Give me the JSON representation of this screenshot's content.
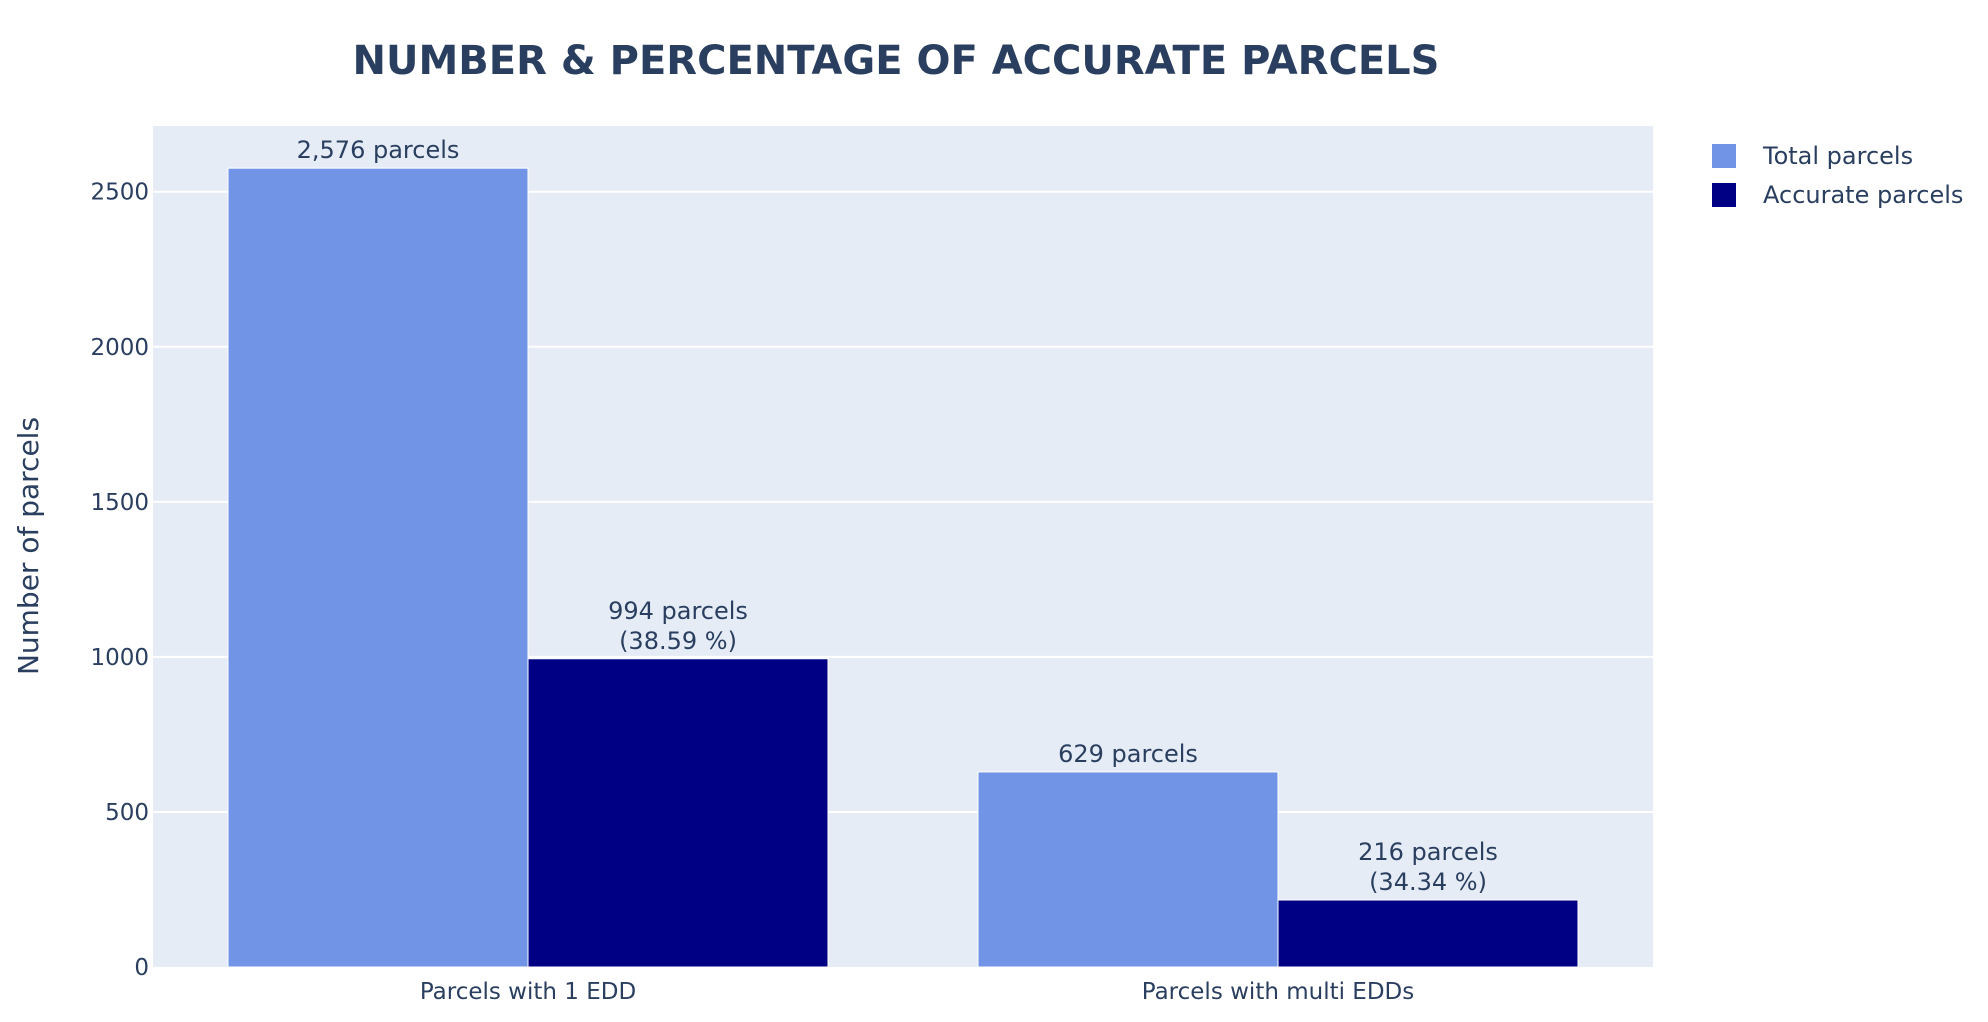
{
  "chart_data": {
    "type": "bar",
    "title": "NUMBER & PERCENTAGE OF ACCURATE PARCELS",
    "ylabel": "Number of parcels",
    "xlabel": "",
    "categories": [
      "Parcels with 1 EDD",
      "Parcels with multi EDDs"
    ],
    "series": [
      {
        "name": "Total parcels",
        "color": "#7194e6",
        "values": [
          2576,
          629
        ],
        "labels": [
          [
            "2,576 parcels"
          ],
          [
            "629 parcels"
          ]
        ]
      },
      {
        "name": "Accurate parcels",
        "color": "#000085",
        "values": [
          994,
          216
        ],
        "labels": [
          [
            "994 parcels",
            "(38.59 %)"
          ],
          [
            "216 parcels",
            "(34.34 %)"
          ]
        ]
      }
    ],
    "ylim": [
      0,
      2712
    ],
    "yticks": [
      0,
      500,
      1000,
      1500,
      2000,
      2500
    ],
    "grid": true,
    "legend_position": "top-right",
    "plot_background": "#e5ecf6",
    "gridline_color": "#ffffff"
  }
}
